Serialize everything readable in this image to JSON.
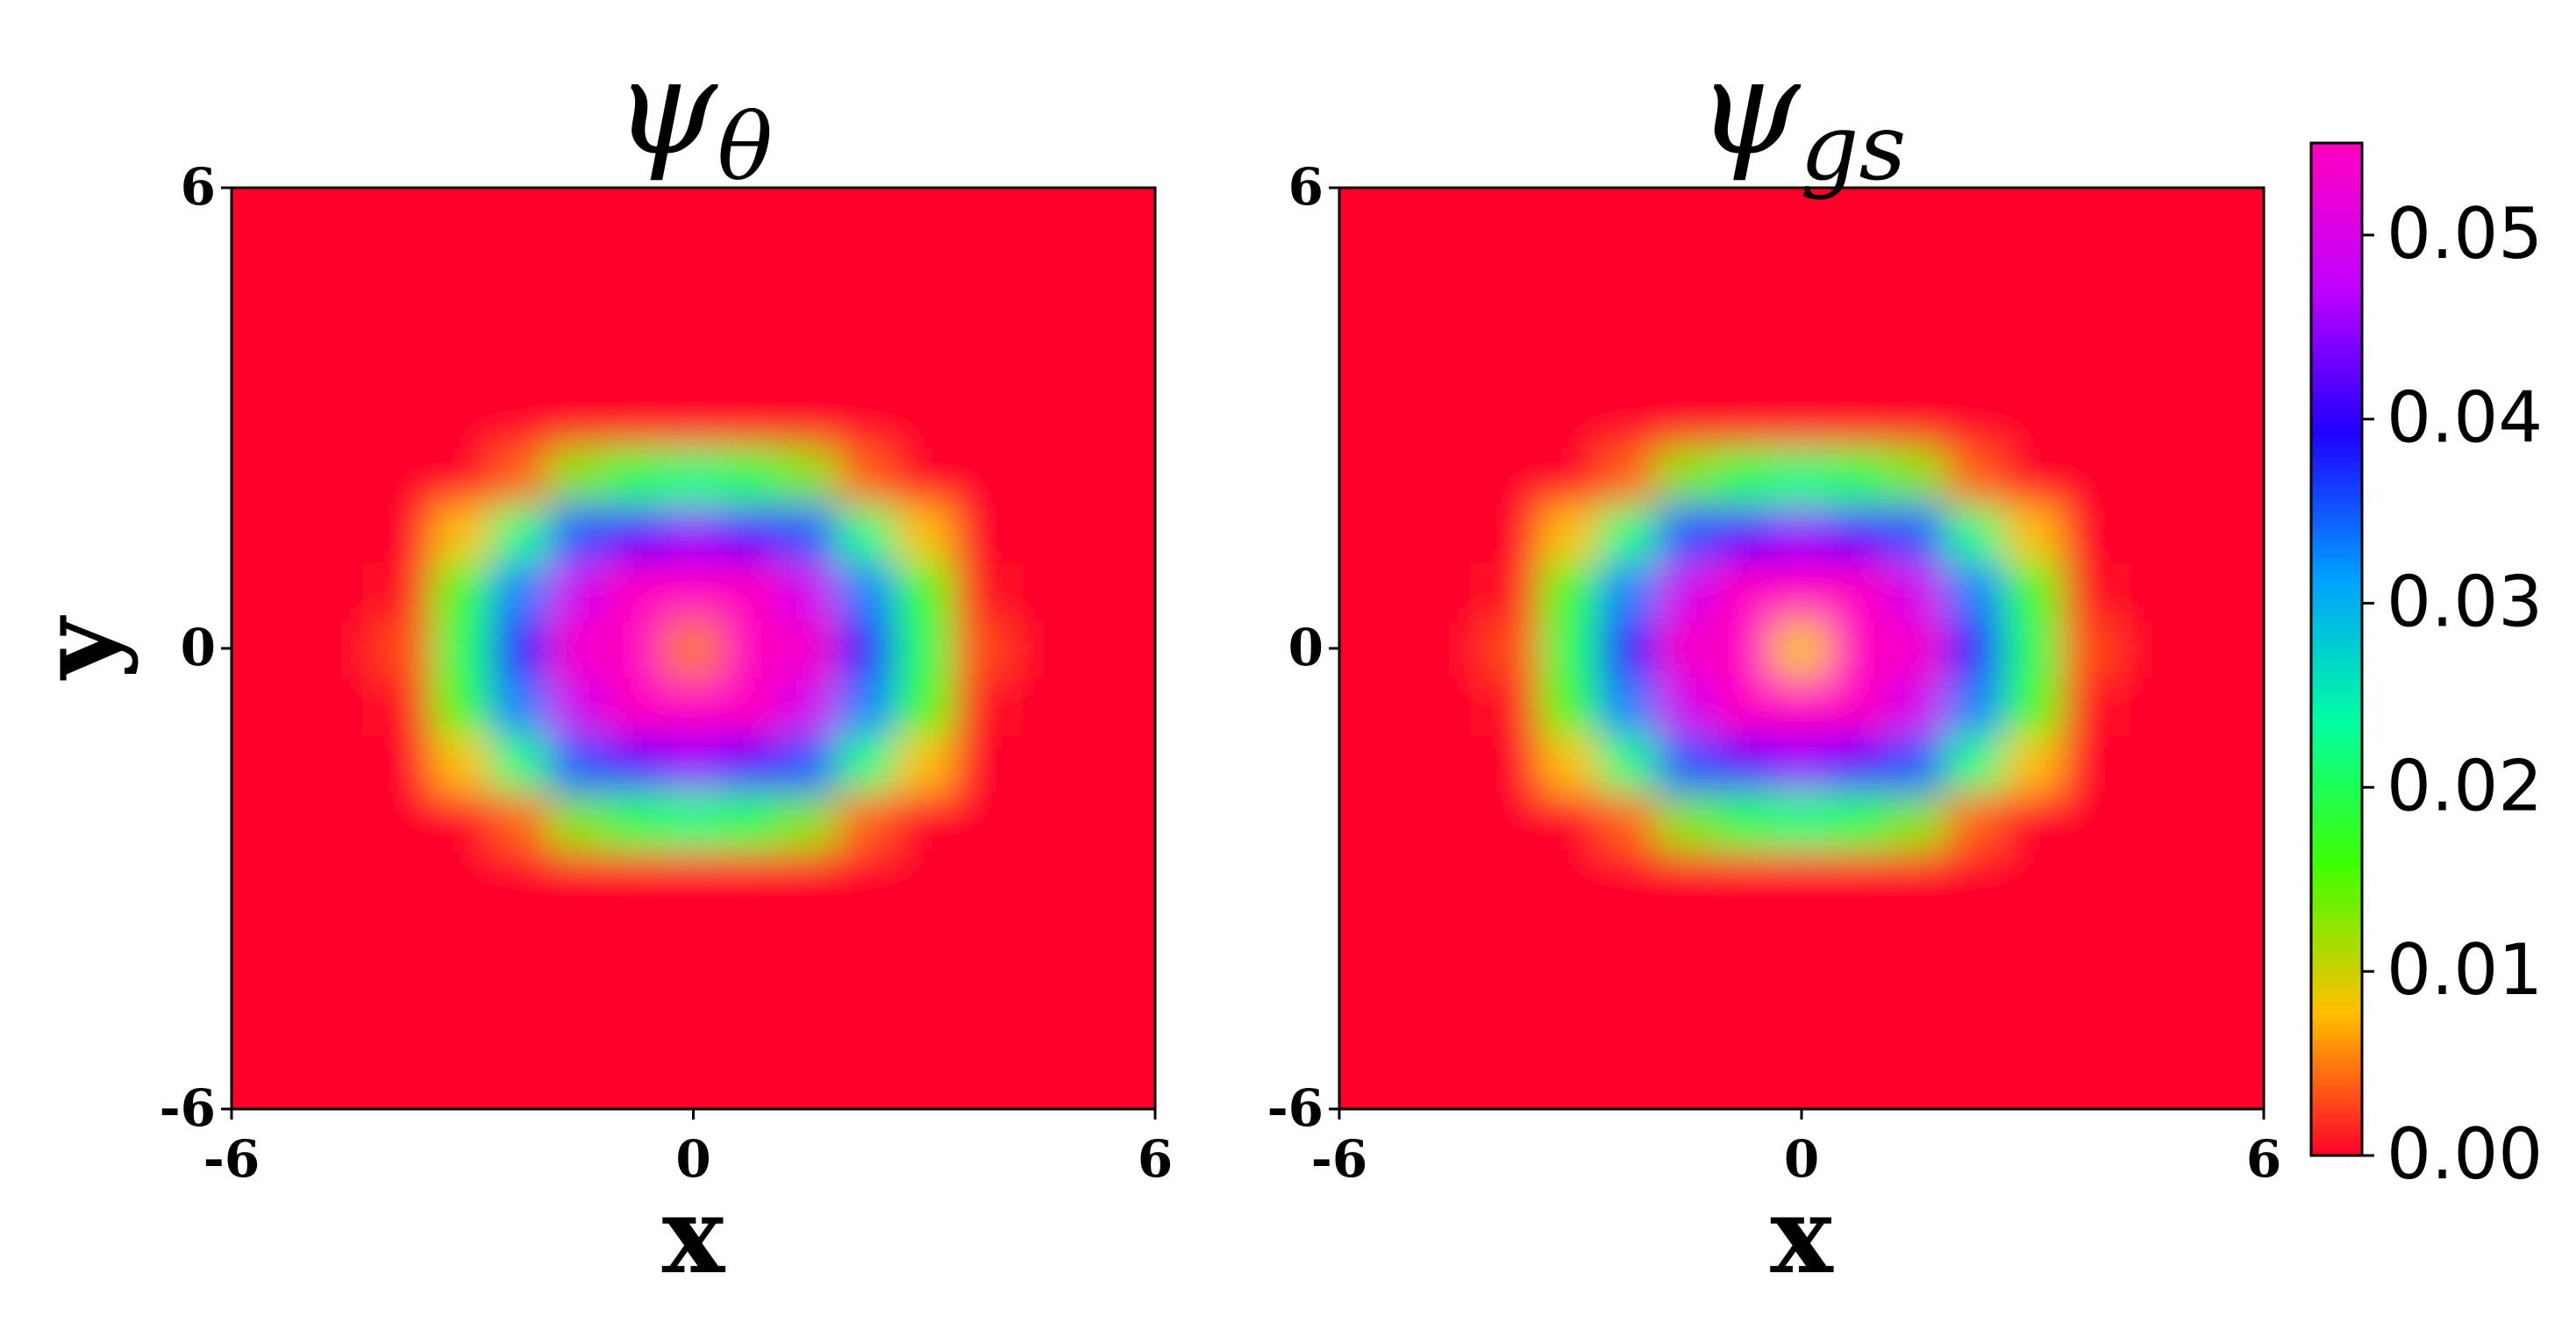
{
  "chart_data": [
    {
      "type": "heatmap",
      "title": "ψθ",
      "xlabel": "x",
      "ylabel": "y",
      "x": [
        -6,
        -5.25,
        -4.5,
        -3.75,
        -3,
        -2.25,
        -1.5,
        -0.75,
        0,
        0.75,
        1.5,
        2.25,
        3,
        3.75,
        4.5,
        5.25,
        6
      ],
      "y": [
        -6,
        -5.25,
        -4.5,
        -3.75,
        -3,
        -2.25,
        -1.5,
        -0.75,
        0,
        0.75,
        1.5,
        2.25,
        3,
        3.75,
        4.5,
        5.25,
        6
      ],
      "values": [
        [
          0,
          0,
          0,
          0,
          0,
          0,
          0,
          0,
          0,
          0,
          0,
          0,
          0,
          0,
          0,
          0,
          0
        ],
        [
          0,
          0,
          0,
          0,
          0,
          0,
          0,
          0,
          0,
          0,
          0,
          0,
          0,
          0,
          0,
          0,
          0
        ],
        [
          0,
          0,
          0,
          0,
          0,
          0,
          0,
          0,
          0,
          0,
          0,
          0,
          0,
          0,
          0,
          0,
          0
        ],
        [
          0,
          0,
          0,
          0,
          0,
          0,
          0,
          0,
          0,
          0,
          0,
          0,
          0,
          0,
          0,
          0,
          0
        ],
        [
          0,
          0,
          0,
          0,
          0,
          0,
          0,
          0,
          0,
          0,
          0,
          0,
          0,
          0,
          0,
          0,
          0
        ],
        [
          0,
          0,
          0,
          0,
          0,
          0.004,
          0.013,
          0.02,
          0.022,
          0.02,
          0.013,
          0.004,
          0,
          0,
          0,
          0,
          0
        ],
        [
          0,
          0,
          0,
          0,
          0.008,
          0.022,
          0.035,
          0.042,
          0.045,
          0.042,
          0.035,
          0.022,
          0.008,
          0,
          0,
          0,
          0
        ],
        [
          0,
          0,
          0,
          0.001,
          0.017,
          0.033,
          0.049,
          0.055,
          0.055,
          0.055,
          0.049,
          0.033,
          0.017,
          0.001,
          0,
          0,
          0
        ],
        [
          0,
          0,
          0,
          0.003,
          0.02,
          0.038,
          0.054,
          0.055,
          0.005,
          0.055,
          0.054,
          0.038,
          0.02,
          0.003,
          0,
          0,
          0
        ],
        [
          0,
          0,
          0,
          0.001,
          0.017,
          0.033,
          0.049,
          0.055,
          0.055,
          0.055,
          0.049,
          0.033,
          0.017,
          0.001,
          0,
          0,
          0
        ],
        [
          0,
          0,
          0,
          0,
          0.008,
          0.022,
          0.035,
          0.042,
          0.045,
          0.042,
          0.035,
          0.022,
          0.008,
          0,
          0,
          0,
          0
        ],
        [
          0,
          0,
          0,
          0,
          0,
          0.004,
          0.013,
          0.02,
          0.022,
          0.02,
          0.013,
          0.004,
          0,
          0,
          0,
          0,
          0
        ],
        [
          0,
          0,
          0,
          0,
          0,
          0,
          0,
          0,
          0,
          0,
          0,
          0,
          0,
          0,
          0,
          0,
          0
        ],
        [
          0,
          0,
          0,
          0,
          0,
          0,
          0,
          0,
          0,
          0,
          0,
          0,
          0,
          0,
          0,
          0,
          0
        ],
        [
          0,
          0,
          0,
          0,
          0,
          0,
          0,
          0,
          0,
          0,
          0,
          0,
          0,
          0,
          0,
          0,
          0
        ],
        [
          0,
          0,
          0,
          0,
          0,
          0,
          0,
          0,
          0,
          0,
          0,
          0,
          0,
          0,
          0,
          0,
          0
        ],
        [
          0,
          0,
          0,
          0,
          0,
          0,
          0,
          0,
          0,
          0,
          0,
          0,
          0,
          0,
          0,
          0,
          0
        ]
      ],
      "xlim": [
        -6,
        6
      ],
      "ylim": [
        -6,
        6
      ],
      "xticks": [
        -6,
        0,
        6
      ],
      "yticks": [
        -6,
        0,
        6
      ]
    },
    {
      "type": "heatmap",
      "title": "ψgs",
      "xlabel": "x",
      "x": [
        -6,
        -5.25,
        -4.5,
        -3.75,
        -3,
        -2.25,
        -1.5,
        -0.75,
        0,
        0.75,
        1.5,
        2.25,
        3,
        3.75,
        4.5,
        5.25,
        6
      ],
      "y": [
        -6,
        -5.25,
        -4.5,
        -3.75,
        -3,
        -2.25,
        -1.5,
        -0.75,
        0,
        0.75,
        1.5,
        2.25,
        3,
        3.75,
        4.5,
        5.25,
        6
      ],
      "values": [
        [
          0,
          0,
          0,
          0,
          0,
          0,
          0,
          0,
          0,
          0,
          0,
          0,
          0,
          0,
          0,
          0,
          0
        ],
        [
          0,
          0,
          0,
          0,
          0,
          0,
          0,
          0,
          0,
          0,
          0,
          0,
          0,
          0,
          0,
          0,
          0
        ],
        [
          0,
          0,
          0,
          0,
          0,
          0,
          0,
          0,
          0,
          0,
          0,
          0,
          0,
          0,
          0,
          0,
          0
        ],
        [
          0,
          0,
          0,
          0,
          0,
          0,
          0,
          0,
          0,
          0,
          0,
          0,
          0,
          0,
          0,
          0,
          0
        ],
        [
          0,
          0,
          0,
          0,
          0,
          0,
          0,
          0,
          0,
          0,
          0,
          0,
          0,
          0,
          0,
          0,
          0
        ],
        [
          0,
          0,
          0,
          0,
          0,
          0.004,
          0.013,
          0.02,
          0.022,
          0.02,
          0.013,
          0.004,
          0,
          0,
          0,
          0,
          0
        ],
        [
          0,
          0,
          0,
          0,
          0.008,
          0.022,
          0.035,
          0.042,
          0.045,
          0.042,
          0.035,
          0.022,
          0.008,
          0,
          0,
          0,
          0
        ],
        [
          0,
          0,
          0,
          0.001,
          0.017,
          0.033,
          0.049,
          0.055,
          0.055,
          0.055,
          0.049,
          0.033,
          0.017,
          0.001,
          0,
          0,
          0
        ],
        [
          0,
          0,
          0,
          0.003,
          0.02,
          0.038,
          0.054,
          0.055,
          0.008,
          0.055,
          0.054,
          0.038,
          0.02,
          0.003,
          0,
          0,
          0
        ],
        [
          0,
          0,
          0,
          0.001,
          0.017,
          0.033,
          0.049,
          0.055,
          0.055,
          0.055,
          0.049,
          0.033,
          0.017,
          0.001,
          0,
          0,
          0
        ],
        [
          0,
          0,
          0,
          0,
          0.008,
          0.022,
          0.035,
          0.042,
          0.045,
          0.042,
          0.035,
          0.022,
          0.008,
          0,
          0,
          0,
          0
        ],
        [
          0,
          0,
          0,
          0,
          0,
          0.004,
          0.013,
          0.02,
          0.022,
          0.02,
          0.013,
          0.004,
          0,
          0,
          0,
          0,
          0
        ],
        [
          0,
          0,
          0,
          0,
          0,
          0,
          0,
          0,
          0,
          0,
          0,
          0,
          0,
          0,
          0,
          0,
          0
        ],
        [
          0,
          0,
          0,
          0,
          0,
          0,
          0,
          0,
          0,
          0,
          0,
          0,
          0,
          0,
          0,
          0,
          0
        ],
        [
          0,
          0,
          0,
          0,
          0,
          0,
          0,
          0,
          0,
          0,
          0,
          0,
          0,
          0,
          0,
          0,
          0
        ],
        [
          0,
          0,
          0,
          0,
          0,
          0,
          0,
          0,
          0,
          0,
          0,
          0,
          0,
          0,
          0,
          0,
          0
        ],
        [
          0,
          0,
          0,
          0,
          0,
          0,
          0,
          0,
          0,
          0,
          0,
          0,
          0,
          0,
          0,
          0,
          0
        ]
      ],
      "xlim": [
        -6,
        6
      ],
      "ylim": [
        -6,
        6
      ],
      "xticks": [
        -6,
        0,
        6
      ],
      "yticks": [
        -6,
        0,
        6
      ]
    },
    {
      "type": "colorbar",
      "clim": [
        0,
        0.055
      ],
      "ticks": [
        {
          "value": 0,
          "label": "0.00"
        },
        0.01,
        0.02,
        0.03,
        0.04,
        0.05
      ],
      "colors": [
        "#ff0029",
        "#ffc000",
        "#40ff00",
        "#00ffa0",
        "#00a0ff",
        "#2000ff",
        "#c000ff",
        "#ff00bf"
      ]
    }
  ]
}
